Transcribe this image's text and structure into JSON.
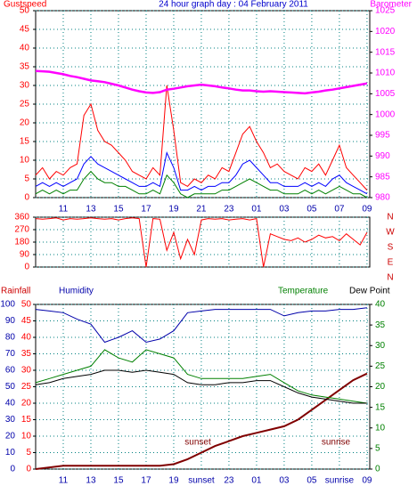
{
  "chart_data": [
    {
      "type": "line",
      "title": "24 hour graph day : 04 February 2011",
      "axis_colors": {
        "y": "#ff0000",
        "y2": "#ff00ff"
      },
      "xlim": [
        9,
        33.2
      ],
      "xticks": [
        11,
        13,
        15,
        17,
        19,
        21,
        23,
        {
          "value": 25,
          "label": "01"
        },
        {
          "value": 27,
          "label": "03"
        },
        {
          "value": 29,
          "label": "05"
        },
        {
          "value": 31,
          "label": "07"
        },
        {
          "value": 33,
          "label": "09"
        }
      ],
      "ylim": [
        0,
        50
      ],
      "yticks": [
        0,
        5,
        10,
        15,
        20,
        25,
        30,
        35,
        40,
        45,
        50
      ],
      "y2lim": [
        980,
        1025
      ],
      "y2ticks": [
        980,
        985,
        990,
        995,
        1000,
        1005,
        1010,
        1015,
        1020,
        1025
      ],
      "grid": true,
      "x": [
        9,
        9.5,
        10,
        10.5,
        11,
        11.5,
        12,
        12.5,
        13,
        13.5,
        14,
        14.5,
        15,
        15.5,
        16,
        16.5,
        17,
        17.5,
        18,
        18.5,
        19,
        19.5,
        20,
        20.5,
        21,
        21.5,
        22,
        22.5,
        23,
        23.5,
        24,
        24.5,
        25,
        25.5,
        26,
        26.5,
        27,
        27.5,
        28,
        28.5,
        29,
        29.5,
        30,
        30.5,
        31,
        31.5,
        32,
        32.5,
        33
      ],
      "series": [
        {
          "name": "Gustspeed",
          "color": "#ff0000",
          "values": [
            6,
            8,
            5,
            7,
            6,
            8,
            9,
            22,
            25,
            18,
            15,
            14,
            12,
            10,
            7,
            6,
            5,
            8,
            6,
            30,
            18,
            4,
            3,
            5,
            4,
            6,
            5,
            8,
            7,
            12,
            17,
            19,
            15,
            12,
            8,
            9,
            7,
            6,
            5,
            8,
            7,
            9,
            6,
            10,
            14,
            8,
            6,
            4,
            2
          ]
        },
        {
          "color": "#0000ff",
          "values": [
            3,
            4,
            3,
            4,
            3,
            4,
            5,
            9,
            11,
            9,
            8,
            7,
            6,
            5,
            4,
            3,
            3,
            4,
            3,
            12,
            8,
            2,
            2,
            3,
            2,
            3,
            3,
            4,
            4,
            6,
            9,
            10,
            8,
            6,
            4,
            4,
            3,
            3,
            3,
            4,
            3,
            4,
            3,
            5,
            6,
            4,
            3,
            2,
            1
          ]
        },
        {
          "color": "#008000",
          "values": [
            1,
            2,
            1,
            2,
            1,
            2,
            2,
            5,
            7,
            5,
            4,
            4,
            3,
            3,
            2,
            1,
            1,
            2,
            1,
            6,
            4,
            1,
            0,
            1,
            1,
            1,
            1,
            2,
            2,
            3,
            4,
            5,
            4,
            3,
            2,
            2,
            1,
            1,
            1,
            2,
            1,
            2,
            1,
            2,
            3,
            2,
            1,
            1,
            0
          ]
        },
        {
          "name": "Barometer",
          "color": "#ff00ff",
          "axis": "y2",
          "values": [
            1010.5,
            1010.4,
            1010.3,
            1010,
            1009.7,
            1009.3,
            1009,
            1008.6,
            1008.2,
            1008,
            1007.8,
            1007.4,
            1007,
            1006.5,
            1006,
            1005.6,
            1005.3,
            1005.2,
            1005.4,
            1006,
            1006.2,
            1006.5,
            1006.8,
            1007,
            1007.2,
            1007,
            1006.8,
            1006.5,
            1006.3,
            1006,
            1005.8,
            1005.8,
            1005.6,
            1005.5,
            1005.6,
            1005.5,
            1005.4,
            1005.3,
            1005.2,
            1005.1,
            1005.3,
            1005.5,
            1005.8,
            1006,
            1006.3,
            1006.6,
            1006.9,
            1007.2,
            1007.5
          ]
        }
      ]
    },
    {
      "type": "line",
      "axis_colors": {
        "y": "#ff0000"
      },
      "xlim": [
        9,
        33.2
      ],
      "ylim": [
        0,
        360
      ],
      "yticks": [
        0,
        90,
        180,
        270,
        360
      ],
      "direction_labels": [
        "N",
        "W",
        "S",
        "E",
        "N"
      ],
      "grid": true,
      "x": [
        9,
        9.5,
        10,
        10.5,
        11,
        11.5,
        12,
        12.5,
        13,
        13.5,
        14,
        14.5,
        15,
        15.5,
        16,
        16.5,
        17,
        17.5,
        18,
        18.5,
        19,
        19.5,
        20,
        20.5,
        21,
        21.5,
        22,
        22.5,
        23,
        23.5,
        24,
        24.5,
        25,
        25.5,
        26,
        26.5,
        27,
        27.5,
        28,
        28.5,
        29,
        29.5,
        30,
        30.5,
        31,
        31.5,
        32,
        32.5,
        33
      ],
      "series": [
        {
          "color": "#ff0000",
          "values": [
            350,
            345,
            350,
            355,
            340,
            350,
            345,
            350,
            355,
            350,
            345,
            350,
            340,
            350,
            355,
            350,
            0,
            350,
            345,
            120,
            250,
            60,
            200,
            90,
            340,
            350,
            345,
            350,
            340,
            345,
            350,
            340,
            350,
            0,
            240,
            220,
            200,
            190,
            210,
            180,
            200,
            230,
            210,
            220,
            190,
            240,
            200,
            160,
            250
          ]
        }
      ]
    },
    {
      "type": "line",
      "axis_colors": {
        "y": "#0000aa",
        "y2": "#008000",
        "y3": "#ff0000"
      },
      "xlim": [
        9,
        33.2
      ],
      "xticks": [
        11,
        13,
        15,
        17,
        19,
        {
          "value": 21,
          "label": "sunset"
        },
        23,
        {
          "value": 25,
          "label": "01"
        },
        {
          "value": 27,
          "label": "03"
        },
        {
          "value": 29,
          "label": "05"
        },
        {
          "value": 31,
          "label": "sunrise"
        },
        {
          "value": 33,
          "label": "09"
        }
      ],
      "ylim": [
        0,
        100
      ],
      "yticks": [
        0,
        10,
        20,
        30,
        40,
        50,
        60,
        70,
        80,
        90,
        100
      ],
      "y2lim": [
        0,
        40
      ],
      "y2ticks": [
        0,
        5,
        10,
        15,
        20,
        25,
        30,
        35,
        40
      ],
      "y3lim": [
        0,
        50
      ],
      "y3ticks": [
        0,
        5,
        10,
        15,
        20,
        25,
        30,
        35,
        40,
        45,
        50
      ],
      "grid": true,
      "annotations": [
        "sunset",
        "sunrise"
      ],
      "x": [
        9,
        10,
        11,
        12,
        13,
        14,
        15,
        16,
        17,
        18,
        19,
        20,
        21,
        22,
        23,
        24,
        25,
        26,
        27,
        28,
        29,
        30,
        31,
        32,
        33
      ],
      "series": [
        {
          "name": "Rainfall",
          "color": "#800000",
          "axis": "y3",
          "values": [
            0,
            0.5,
            1,
            1,
            1,
            1,
            1,
            1,
            1,
            1,
            1.5,
            3,
            5,
            7,
            8.5,
            10,
            11,
            12,
            13,
            15,
            18,
            21,
            24,
            27,
            29
          ]
        },
        {
          "name": "Humidity",
          "color": "#0000aa",
          "values": [
            97,
            96,
            95,
            91,
            88,
            77,
            80,
            84,
            77,
            79,
            84,
            95,
            96,
            97,
            97,
            97,
            97,
            97,
            93,
            95,
            96,
            96,
            97,
            97,
            98
          ]
        },
        {
          "name": "Temperature",
          "color": "#008000",
          "axis": "y2",
          "values": [
            21,
            22,
            23,
            24,
            25,
            29,
            27,
            26,
            29,
            28,
            27,
            23,
            22,
            22,
            22,
            22,
            22.5,
            23,
            21,
            19,
            18,
            17.5,
            17,
            16.5,
            16
          ]
        },
        {
          "name": "Dew Point",
          "color": "#000000",
          "axis": "y2",
          "values": [
            20.5,
            21,
            22,
            22.5,
            23,
            24,
            24,
            23.5,
            24,
            23.5,
            23,
            21,
            20.5,
            20.5,
            21,
            21,
            21.5,
            21.5,
            20,
            18.5,
            17.5,
            17,
            16.5,
            16,
            16
          ]
        }
      ]
    }
  ]
}
